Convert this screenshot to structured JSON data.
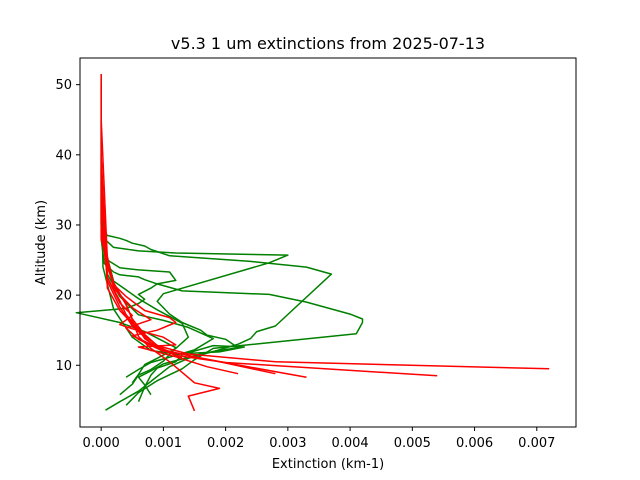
{
  "chart_data": {
    "type": "line",
    "title": "v5.3 1 um extinctions from 2025-07-13",
    "xlabel": "Extinction (km-1)",
    "ylabel": "Altitude (km)",
    "xlim": [
      -0.00034,
      0.00763
    ],
    "ylim": [
      1.2,
      53.8
    ],
    "xticks": [
      0.0,
      0.001,
      0.002,
      0.003,
      0.004,
      0.005,
      0.006,
      0.007
    ],
    "xtick_labels": [
      "0.000",
      "0.001",
      "0.002",
      "0.003",
      "0.004",
      "0.005",
      "0.006",
      "0.007"
    ],
    "yticks": [
      10,
      20,
      30,
      40,
      50
    ],
    "ytick_labels": [
      "10",
      "20",
      "30",
      "40",
      "50"
    ],
    "grid": false,
    "legend": "none",
    "series": [
      {
        "color": "#008000",
        "x": [
          7e-05,
          0.0003,
          0.0006,
          0.0008,
          0.0011,
          0.0014,
          0.0019,
          0.0022,
          0.0024,
          0.0025,
          0.0028,
          0.0037,
          0.0033,
          0.0024,
          0.0011,
          0.0008,
          0.0007,
          0.0005,
          0.0004,
          0.0003,
          0.0001,
          2e-05,
          0.0,
          0.0,
          0.0,
          0.0
        ],
        "y": [
          3.6,
          4.8,
          6.3,
          7.7,
          9.8,
          11.0,
          12.2,
          13.0,
          13.8,
          14.8,
          15.6,
          23.0,
          24.0,
          24.8,
          25.6,
          26.5,
          27.0,
          27.4,
          27.8,
          28.1,
          28.5,
          29.5,
          31.0,
          35.0,
          43.0,
          51.5
        ]
      },
      {
        "color": "#008000",
        "x": [
          0.0004,
          0.0006,
          0.0009,
          0.0013,
          0.0015,
          0.0018,
          0.0041,
          0.0042,
          0.0042,
          0.004,
          0.0033,
          0.0027,
          0.0013,
          0.0009,
          0.0007,
          0.0006,
          0.0003,
          0.0002,
          5e-05,
          0.0,
          0.0
        ],
        "y": [
          4.3,
          6.1,
          7.8,
          9.5,
          10.8,
          12.4,
          14.5,
          16.1,
          16.6,
          17.3,
          19.0,
          20.1,
          20.6,
          21.6,
          22.2,
          22.6,
          22.9,
          23.3,
          24.5,
          28.0,
          40.0
        ]
      },
      {
        "color": "#008000",
        "x": [
          0.0008,
          0.0007,
          0.0006,
          0.0008,
          0.001,
          0.0013,
          0.0016,
          0.0019,
          0.0022,
          0.002,
          0.0017,
          0.0016,
          0.0013,
          0.0011,
          0.0009,
          0.001,
          0.0027,
          0.003,
          0.0012,
          0.0006,
          0.0002,
          3e-05,
          0.0,
          0.0
        ],
        "y": [
          5.8,
          7.2,
          8.3,
          9.2,
          10.2,
          10.9,
          11.6,
          12.1,
          12.5,
          13.7,
          14.3,
          15.0,
          16.1,
          17.3,
          19.1,
          20.2,
          24.6,
          25.7,
          26.0,
          26.3,
          26.8,
          28.2,
          33.0,
          45.0
        ]
      },
      {
        "color": "#008000",
        "x": [
          0.0006,
          0.0007,
          0.0008,
          0.0009,
          0.0012,
          0.0013,
          0.0018,
          0.0023,
          0.0019,
          0.0012,
          0.0008,
          0.0005,
          0.0002,
          3e-05,
          0.0
        ],
        "y": [
          4.8,
          6.9,
          8.6,
          9.6,
          10.5,
          11.5,
          12.8,
          12.6,
          11.9,
          11.6,
          12.1,
          14.0,
          18.0,
          24.0,
          35.0
        ]
      },
      {
        "color": "#008000",
        "x": [
          0.0003,
          0.0005,
          0.0006,
          0.0008,
          0.001,
          0.0012,
          0.0007,
          0.0003,
          -0.0004,
          0.0004,
          0.0006,
          0.0007,
          0.0006,
          0.0008,
          0.0009,
          0.0012,
          0.0011,
          0.0006,
          0.0003,
          0.0001,
          0.0,
          0.0
        ],
        "y": [
          5.8,
          7.3,
          8.6,
          9.4,
          10.6,
          12.5,
          14.8,
          16.1,
          17.5,
          18.1,
          18.8,
          19.4,
          20.1,
          21.0,
          21.6,
          22.1,
          23.3,
          23.6,
          23.9,
          25.0,
          30.0,
          38.0
        ]
      },
      {
        "color": "#008000",
        "x": [
          0.0005,
          0.0006,
          0.0007,
          0.0009,
          0.0012,
          0.0014,
          0.0013,
          0.0009,
          0.0006,
          0.0002,
          2e-05,
          0.0
        ],
        "y": [
          7.5,
          8.7,
          10.1,
          11.0,
          12.4,
          14.0,
          16.0,
          17.9,
          19.5,
          22.0,
          28.0,
          36.0
        ]
      },
      {
        "color": "#008000",
        "x": [
          0.0004,
          0.0006,
          0.0008,
          0.0012,
          0.0015,
          0.0018,
          0.0014,
          0.001,
          0.0006,
          0.0003,
          0.0001,
          0.0
        ],
        "y": [
          8.3,
          9.4,
          10.4,
          11.4,
          12.2,
          13.8,
          15.4,
          16.4,
          17.2,
          19.8,
          23.0,
          32.0
        ]
      },
      {
        "color": "#ff0000",
        "x": [
          0.0015,
          0.0014,
          0.0019,
          0.0015,
          0.0011,
          0.0008,
          0.0006,
          0.0005,
          0.0004,
          0.0002,
          0.0,
          0.0
        ],
        "y": [
          3.5,
          5.6,
          6.7,
          7.5,
          10.5,
          12.4,
          14.1,
          16.5,
          18.7,
          21.5,
          28.0,
          50.0
        ]
      },
      {
        "color": "#ff0000",
        "x": [
          0.0054,
          0.002,
          0.0012,
          0.0009,
          0.0007,
          0.0006,
          0.0004,
          0.0003,
          0.0001,
          0.0,
          0.0
        ],
        "y": [
          8.5,
          10.4,
          11.4,
          12.6,
          13.8,
          15.2,
          17.2,
          19.2,
          22.5,
          30.0,
          51.5
        ]
      },
      {
        "color": "#ff0000",
        "x": [
          0.0072,
          0.0028,
          0.0014,
          0.0009,
          0.0007,
          0.0005,
          0.0004,
          0.0002,
          0.0001,
          0.0
        ],
        "y": [
          9.5,
          10.5,
          11.6,
          12.8,
          14.4,
          16.6,
          18.6,
          21.8,
          25.0,
          45.0
        ]
      },
      {
        "color": "#ff0000",
        "x": [
          0.0033,
          0.0016,
          0.001,
          0.0008,
          0.0006,
          0.0003,
          0.0001,
          0.0
        ],
        "y": [
          8.3,
          11.0,
          12.2,
          13.5,
          15.0,
          17.8,
          21.0,
          38.0
        ]
      },
      {
        "color": "#ff0000",
        "x": [
          0.0028,
          0.0018,
          0.0011,
          0.0008,
          0.0005,
          0.0003,
          0.0001,
          0.0
        ],
        "y": [
          8.8,
          10.7,
          11.9,
          13.2,
          15.6,
          18.3,
          22.0,
          40.0
        ]
      },
      {
        "color": "#ff0000",
        "x": [
          0.0022,
          0.0017,
          0.0012,
          0.0006,
          0.0012,
          0.001,
          0.0005,
          0.0003,
          0.0005,
          0.0003,
          0.0001,
          0.0
        ],
        "y": [
          8.8,
          9.8,
          11.2,
          12.6,
          12.9,
          14.0,
          15.2,
          15.8,
          17.1,
          18.9,
          22.5,
          34.0
        ]
      },
      {
        "color": "#ff0000",
        "x": [
          0.001,
          0.0008,
          0.0005,
          0.0009,
          0.0012,
          0.0011,
          0.0007,
          0.0004,
          0.0002,
          0.0001,
          0.0
        ],
        "y": [
          11.9,
          13.0,
          14.2,
          15.0,
          16.1,
          16.8,
          17.8,
          19.8,
          21.5,
          24.0,
          33.0
        ]
      },
      {
        "color": "#ff0000",
        "x": [
          0.0013,
          0.0009,
          0.0006,
          0.0004,
          0.0008,
          0.0005,
          0.0002,
          0.0
        ],
        "y": [
          11.1,
          12.4,
          13.7,
          15.3,
          16.5,
          18.2,
          21.0,
          30.0
        ]
      }
    ]
  }
}
